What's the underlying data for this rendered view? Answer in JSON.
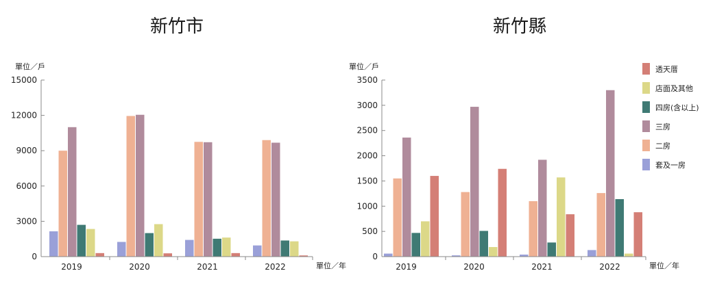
{
  "chart_data": [
    {
      "type": "bar",
      "title": "新竹市",
      "y_unit": "單位／戶",
      "x_unit": "單位／年",
      "ylim": [
        0,
        15000
      ],
      "yticks": [
        "0",
        "3000",
        "6000",
        "9000",
        "12000",
        "15000"
      ],
      "categories": [
        "2019",
        "2020",
        "2021",
        "2022"
      ],
      "series": [
        {
          "name": "套及一房",
          "color": "#9aa0d8",
          "values": [
            2150,
            1250,
            1420,
            950
          ]
        },
        {
          "name": "二房",
          "color": "#efb193",
          "values": [
            9000,
            11950,
            9750,
            9900
          ]
        },
        {
          "name": "三房",
          "color": "#b08b9c",
          "values": [
            11000,
            12050,
            9720,
            9680
          ]
        },
        {
          "name": "四房(含以上)",
          "color": "#3f7a74",
          "values": [
            2700,
            2000,
            1520,
            1370
          ]
        },
        {
          "name": "店面及其他",
          "color": "#dcd888",
          "values": [
            2350,
            2760,
            1620,
            1300
          ]
        },
        {
          "name": "透天厝",
          "color": "#d47f76",
          "values": [
            300,
            280,
            300,
            100
          ]
        }
      ],
      "legend": "none"
    },
    {
      "type": "bar",
      "title": "新竹縣",
      "y_unit": "單位／戶",
      "x_unit": "單位／年",
      "ylim": [
        0,
        3500
      ],
      "yticks": [
        "0",
        "500",
        "1000",
        "1500",
        "2000",
        "2500",
        "3000",
        "3500"
      ],
      "categories": [
        "2019",
        "2020",
        "2021",
        "2022"
      ],
      "series": [
        {
          "name": "套及一房",
          "color": "#9aa0d8",
          "values": [
            60,
            25,
            40,
            130
          ]
        },
        {
          "name": "二房",
          "color": "#efb193",
          "values": [
            1550,
            1280,
            1100,
            1260
          ]
        },
        {
          "name": "三房",
          "color": "#b08b9c",
          "values": [
            2360,
            2970,
            1920,
            3300
          ]
        },
        {
          "name": "四房(含以上)",
          "color": "#3f7a74",
          "values": [
            470,
            510,
            280,
            1140
          ]
        },
        {
          "name": "店面及其他",
          "color": "#dcd888",
          "values": [
            700,
            190,
            1570,
            60
          ]
        },
        {
          "name": "透天厝",
          "color": "#d47f76",
          "values": [
            1600,
            1740,
            840,
            880
          ]
        }
      ],
      "legend": "right",
      "legend_order": [
        "透天厝",
        "店面及其他",
        "四房(含以上)",
        "三房",
        "二房",
        "套及一房"
      ]
    }
  ]
}
